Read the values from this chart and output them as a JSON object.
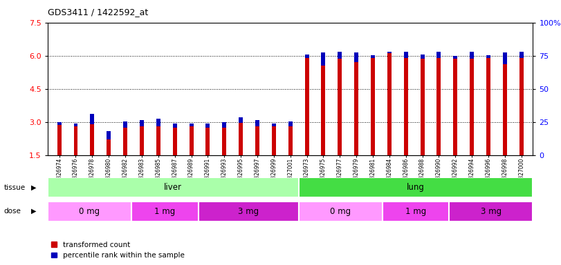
{
  "title": "GDS3411 / 1422592_at",
  "samples": [
    "GSM326974",
    "GSM326976",
    "GSM326978",
    "GSM326980",
    "GSM326982",
    "GSM326983",
    "GSM326985",
    "GSM326987",
    "GSM326989",
    "GSM326991",
    "GSM326993",
    "GSM326995",
    "GSM326997",
    "GSM326999",
    "GSM327001",
    "GSM326973",
    "GSM326975",
    "GSM326977",
    "GSM326979",
    "GSM326981",
    "GSM326984",
    "GSM326986",
    "GSM326988",
    "GSM326990",
    "GSM326992",
    "GSM326994",
    "GSM326996",
    "GSM326998",
    "GSM327000"
  ],
  "red_values": [
    2.85,
    2.8,
    2.9,
    2.2,
    2.75,
    2.8,
    2.8,
    2.75,
    2.8,
    2.75,
    2.75,
    2.95,
    2.8,
    2.8,
    2.8,
    5.9,
    5.55,
    5.85,
    5.7,
    5.9,
    6.1,
    5.9,
    5.85,
    5.9,
    5.85,
    5.85,
    5.9,
    5.6,
    5.9
  ],
  "blue_values": [
    2.98,
    2.93,
    3.35,
    2.57,
    3.03,
    3.08,
    3.13,
    2.93,
    2.92,
    2.93,
    2.98,
    3.22,
    3.08,
    2.92,
    3.03,
    6.04,
    6.13,
    6.18,
    6.13,
    6.03,
    6.18,
    6.18,
    6.04,
    6.18,
    5.98,
    6.18,
    6.03,
    6.13,
    6.18
  ],
  "tissue_groups": [
    {
      "label": "liver",
      "start": 0,
      "end": 15,
      "color": "#AAFFAA"
    },
    {
      "label": "lung",
      "start": 15,
      "end": 29,
      "color": "#44DD44"
    }
  ],
  "dose_groups": [
    {
      "label": "0 mg",
      "start": 0,
      "end": 5,
      "color": "#FF99FF"
    },
    {
      "label": "1 mg",
      "start": 5,
      "end": 9,
      "color": "#EE44EE"
    },
    {
      "label": "3 mg",
      "start": 9,
      "end": 15,
      "color": "#CC22CC"
    },
    {
      "label": "0 mg",
      "start": 15,
      "end": 20,
      "color": "#FF99FF"
    },
    {
      "label": "1 mg",
      "start": 20,
      "end": 24,
      "color": "#EE44EE"
    },
    {
      "label": "3 mg",
      "start": 24,
      "end": 29,
      "color": "#CC22CC"
    }
  ],
  "ylim_left": [
    1.5,
    7.5
  ],
  "ylim_right": [
    0,
    100
  ],
  "yticks_left": [
    1.5,
    3.0,
    4.5,
    6.0,
    7.5
  ],
  "yticks_right": [
    0,
    25,
    50,
    75,
    100
  ],
  "bar_color": "#CC0000",
  "blue_color": "#0000BB",
  "bg_color": "#FFFFFF",
  "bar_width": 0.25,
  "baseline": 1.5,
  "legend_items": [
    "transformed count",
    "percentile rank within the sample"
  ]
}
